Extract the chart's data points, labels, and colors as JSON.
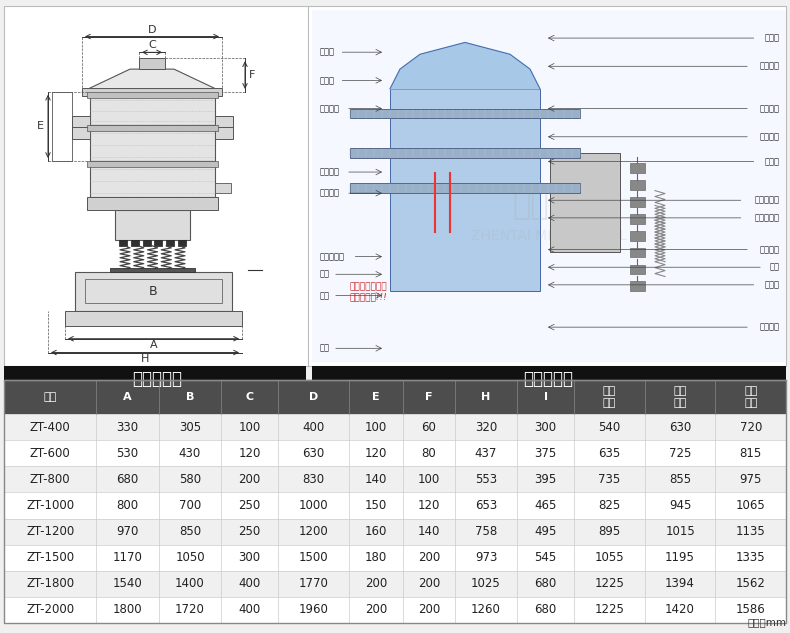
{
  "title_left": "外形尺寸图",
  "title_right": "一般结构图",
  "unit_text": "单位：mm",
  "header_bg": "#111111",
  "col_header_bg": "#555555",
  "row_bg_alt": "#f5f5f5",
  "row_bg_norm": "#ffffff",
  "border_color": "#999999",
  "columns": [
    "型号",
    "A",
    "B",
    "C",
    "D",
    "E",
    "F",
    "H",
    "I",
    "一层\n高度",
    "二层\n高度",
    "三层\n高度"
  ],
  "rows": [
    [
      "ZT-400",
      "330",
      "305",
      "100",
      "400",
      "100",
      "60",
      "320",
      "300",
      "540",
      "630",
      "720"
    ],
    [
      "ZT-600",
      "530",
      "430",
      "120",
      "630",
      "120",
      "80",
      "437",
      "375",
      "635",
      "725",
      "815"
    ],
    [
      "ZT-800",
      "680",
      "580",
      "200",
      "830",
      "140",
      "100",
      "553",
      "395",
      "735",
      "855",
      "975"
    ],
    [
      "ZT-1000",
      "800",
      "700",
      "250",
      "1000",
      "150",
      "120",
      "653",
      "465",
      "825",
      "945",
      "1065"
    ],
    [
      "ZT-1200",
      "970",
      "850",
      "250",
      "1200",
      "160",
      "140",
      "758",
      "495",
      "895",
      "1015",
      "1135"
    ],
    [
      "ZT-1500",
      "1170",
      "1050",
      "300",
      "1500",
      "180",
      "200",
      "973",
      "545",
      "1055",
      "1195",
      "1335"
    ],
    [
      "ZT-1800",
      "1540",
      "1400",
      "400",
      "1770",
      "200",
      "200",
      "1025",
      "680",
      "1225",
      "1394",
      "1562"
    ],
    [
      "ZT-2000",
      "1800",
      "1720",
      "400",
      "1960",
      "200",
      "200",
      "1260",
      "680",
      "1225",
      "1420",
      "1586"
    ]
  ],
  "left_labels": [
    [
      "防尘盖",
      0.88
    ],
    [
      "压紧环",
      0.8
    ],
    [
      "顶部框架",
      0.72
    ],
    [
      "中部框架",
      0.54
    ],
    [
      "底部框架",
      0.48
    ],
    [
      "小尺寸排料",
      0.3
    ],
    [
      "束环",
      0.25
    ],
    [
      "弹簧",
      0.19
    ],
    [
      "底座",
      0.04
    ]
  ],
  "right_labels": [
    [
      "进料口",
      0.92
    ],
    [
      "辅助筛网",
      0.84
    ],
    [
      "辅助筛网",
      0.72
    ],
    [
      "筛网法兰",
      0.64
    ],
    [
      "橡胶球",
      0.57
    ],
    [
      "球形清洗板",
      0.46
    ],
    [
      "额外重锤板",
      0.41
    ],
    [
      "上部重锤",
      0.32
    ],
    [
      "振体",
      0.27
    ],
    [
      "电动机",
      0.22
    ],
    [
      "下部重锤",
      0.1
    ]
  ],
  "warn_text": "运输用固定螺栓\n试机时去掉!!!"
}
